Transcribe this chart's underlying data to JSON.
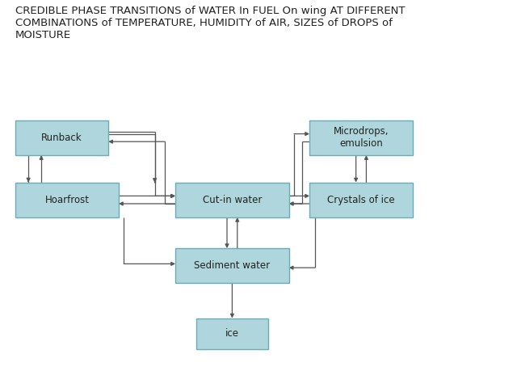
{
  "title": "CREDIBLE PHASE TRANSITIONS of WATER In FUEL On wing AT DIFFERENT\nCOMBINATIONS of TEMPERATURE, HUMIDITY of AIR, SIZES of DROPS of\nMOISTURE",
  "title_fontsize": 9.5,
  "bg_color": "#ffffff",
  "box_fill": "#aed6dc",
  "box_edge": "#6aacb8",
  "box_text_color": "#222222",
  "boxes": {
    "Runback": [
      0.03,
      0.6,
      0.18,
      0.09
    ],
    "Hoarfrost": [
      0.03,
      0.44,
      0.2,
      0.09
    ],
    "Cut-in water": [
      0.34,
      0.44,
      0.22,
      0.09
    ],
    "Microdrops,\nemulsion": [
      0.6,
      0.6,
      0.2,
      0.09
    ],
    "Crystals of ice": [
      0.6,
      0.44,
      0.2,
      0.09
    ],
    "Sediment water": [
      0.34,
      0.27,
      0.22,
      0.09
    ],
    "ice": [
      0.38,
      0.1,
      0.14,
      0.08
    ]
  },
  "arrow_color": "#555555",
  "arrow_lw": 0.9
}
